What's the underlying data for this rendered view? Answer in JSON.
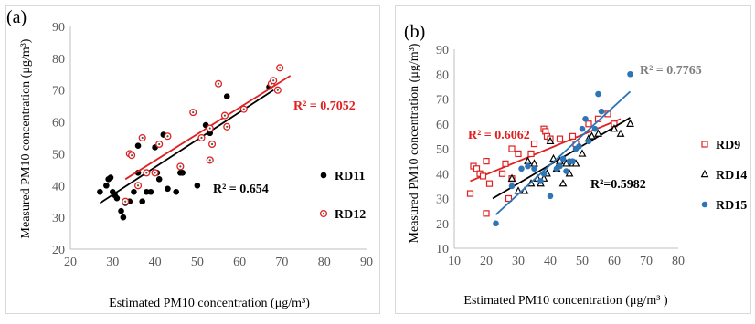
{
  "chart_data": [
    {
      "panel_label": "(a)",
      "type": "scatter",
      "xlabel": "Estimated PM10 concentration (μg/m³)",
      "ylabel": "Measured PM10 concentration (μg/m³)",
      "xlim": [
        20,
        90
      ],
      "ylim": [
        20,
        90
      ],
      "x_ticks": [
        20,
        30,
        40,
        50,
        60,
        70,
        80,
        90
      ],
      "y_ticks": [
        20,
        30,
        40,
        50,
        60,
        70,
        80,
        90
      ],
      "grid": false,
      "legend_placement": "right",
      "series": [
        {
          "name": "RD11",
          "color": "#000000",
          "marker": "filled-circle",
          "points": [
            [
              27,
              38
            ],
            [
              28.5,
              40
            ],
            [
              29,
              42
            ],
            [
              29.5,
              42.5
            ],
            [
              30,
              38
            ],
            [
              30.5,
              37
            ],
            [
              31,
              36
            ],
            [
              32,
              32
            ],
            [
              32.5,
              30
            ],
            [
              33,
              34.5
            ],
            [
              34,
              35
            ],
            [
              35,
              38
            ],
            [
              36,
              44
            ],
            [
              36,
              52.5
            ],
            [
              37,
              35
            ],
            [
              38,
              38
            ],
            [
              39,
              38
            ],
            [
              40,
              52
            ],
            [
              40.5,
              44
            ],
            [
              41,
              42
            ],
            [
              42,
              56
            ],
            [
              43,
              39
            ],
            [
              45,
              38
            ],
            [
              46,
              44
            ],
            [
              46.5,
              44
            ],
            [
              50,
              40
            ],
            [
              52,
              59
            ],
            [
              53,
              56.5
            ],
            [
              57,
              68
            ],
            [
              67,
              71
            ]
          ],
          "trendline": [
            [
              27,
              34.5
            ],
            [
              68,
              70
            ]
          ],
          "r2_label": "R² = 0.654"
        },
        {
          "name": "RD12",
          "color": "#e02020",
          "marker": "open-circle",
          "points": [
            [
              33,
              35
            ],
            [
              34,
              50
            ],
            [
              34.5,
              49.5
            ],
            [
              36,
              40
            ],
            [
              37,
              55
            ],
            [
              38,
              44
            ],
            [
              40,
              44
            ],
            [
              41,
              53
            ],
            [
              43,
              55.5
            ],
            [
              46,
              46
            ],
            [
              49,
              63
            ],
            [
              51,
              55
            ],
            [
              53,
              58
            ],
            [
              53.5,
              53
            ],
            [
              53,
              48
            ],
            [
              55,
              72
            ],
            [
              56.5,
              62
            ],
            [
              57,
              58.5
            ],
            [
              61,
              64
            ],
            [
              67.5,
              72
            ],
            [
              68,
              73
            ],
            [
              69,
              70
            ],
            [
              69.5,
              77
            ]
          ],
          "trendline": [
            [
              33,
              42
            ],
            [
              72,
              74.5
            ]
          ],
          "r2_label": "R² = 0.7052"
        }
      ]
    },
    {
      "panel_label": "(b)",
      "type": "scatter",
      "xlabel": "Estimated PM10 concentration (μg/m³ )",
      "ylabel": "Measured PM10 concentration (μg/m³)",
      "xlim": [
        10,
        80
      ],
      "ylim": [
        10,
        90
      ],
      "x_ticks": [
        10,
        20,
        30,
        40,
        50,
        60,
        70,
        80
      ],
      "y_ticks": [
        10,
        20,
        30,
        40,
        50,
        60,
        70,
        80,
        90
      ],
      "grid": false,
      "legend_placement": "right",
      "series": [
        {
          "name": "RD9",
          "color": "#e02020",
          "marker": "open-square",
          "points": [
            [
              15,
              32
            ],
            [
              16,
              43
            ],
            [
              17,
              42
            ],
            [
              18,
              40
            ],
            [
              19,
              39
            ],
            [
              20,
              24
            ],
            [
              20,
              45
            ],
            [
              21,
              36
            ],
            [
              25,
              40
            ],
            [
              26,
              44
            ],
            [
              27,
              30
            ],
            [
              28,
              38
            ],
            [
              28,
              50
            ],
            [
              30,
              48
            ],
            [
              34,
              48
            ],
            [
              35,
              52
            ],
            [
              38,
              58
            ],
            [
              38.5,
              57
            ],
            [
              39,
              55
            ],
            [
              40,
              54
            ],
            [
              43,
              54
            ],
            [
              47,
              55
            ],
            [
              48,
              52
            ],
            [
              52,
              60
            ],
            [
              55,
              62
            ],
            [
              58,
              64
            ],
            [
              60,
              60
            ]
          ],
          "trendline": [
            [
              15,
              37
            ],
            [
              62,
              62
            ]
          ],
          "r2_label": "R²=0.5982"
        },
        {
          "name": "RD14",
          "color": "#000000",
          "marker": "open-triangle",
          "points": [
            [
              28,
              38
            ],
            [
              30,
              33
            ],
            [
              32,
              33
            ],
            [
              33,
              45
            ],
            [
              34,
              36
            ],
            [
              35,
              44
            ],
            [
              36,
              38
            ],
            [
              37,
              36
            ],
            [
              38,
              38
            ],
            [
              39,
              40
            ],
            [
              40,
              53
            ],
            [
              41,
              46
            ],
            [
              42,
              42
            ],
            [
              43,
              45
            ],
            [
              44,
              36
            ],
            [
              45,
              44
            ],
            [
              46,
              40
            ],
            [
              47,
              44
            ],
            [
              48,
              44
            ],
            [
              50,
              48
            ],
            [
              52,
              54
            ],
            [
              53,
              55
            ],
            [
              55,
              56
            ],
            [
              60,
              58
            ],
            [
              62,
              56
            ],
            [
              65,
              60
            ]
          ],
          "trendline": [
            [
              22,
              30
            ],
            [
              65,
              62.5
            ]
          ],
          "r2_label": "R² = 0.6062"
        },
        {
          "name": "RD15",
          "color": "#2e75b6",
          "marker": "filled-circle",
          "points": [
            [
              23,
              20
            ],
            [
              28,
              35
            ],
            [
              31,
              42
            ],
            [
              33,
              43
            ],
            [
              35,
              42
            ],
            [
              37,
              37
            ],
            [
              38,
              40
            ],
            [
              40,
              31
            ],
            [
              42,
              42
            ],
            [
              43,
              43
            ],
            [
              44,
              46
            ],
            [
              45,
              41
            ],
            [
              46,
              45
            ],
            [
              47,
              45
            ],
            [
              48,
              50
            ],
            [
              49,
              51
            ],
            [
              50,
              58
            ],
            [
              51,
              62
            ],
            [
              52,
              53
            ],
            [
              54,
              58
            ],
            [
              55,
              72
            ],
            [
              56,
              65
            ],
            [
              65,
              80
            ]
          ],
          "trendline": [
            [
              23,
              23.5
            ],
            [
              65,
              73
            ]
          ],
          "r2_label": "R² = 0.7765"
        }
      ]
    }
  ]
}
